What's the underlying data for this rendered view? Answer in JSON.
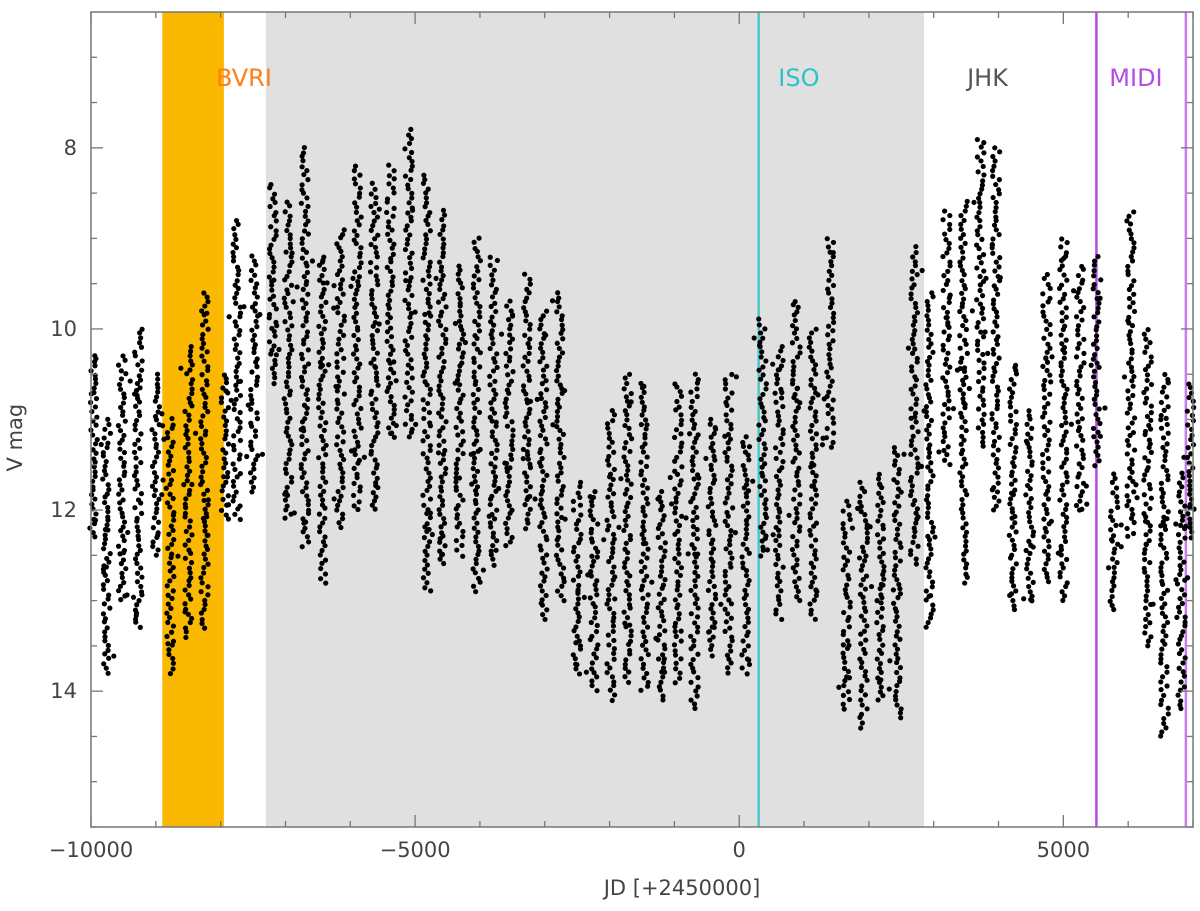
{
  "chart_data": {
    "type": "scatter",
    "title": "",
    "xlabel": "JD [+2450000]",
    "ylabel": "V mag",
    "xlim": [
      -10000,
      7000
    ],
    "ylim": [
      15.5,
      6.5
    ],
    "y_inverted": true,
    "grid": false,
    "x_ticks": [
      {
        "value": -10000,
        "label": "−10000"
      },
      {
        "value": -5000,
        "label": "−5000"
      },
      {
        "value": 0,
        "label": "0"
      },
      {
        "value": 5000,
        "label": "5000"
      }
    ],
    "y_ticks": [
      {
        "value": 8,
        "label": "8"
      },
      {
        "value": 10,
        "label": "10"
      },
      {
        "value": 12,
        "label": "12"
      },
      {
        "value": 14,
        "label": "14"
      }
    ],
    "bands": [
      {
        "name": "BVRI",
        "x0": -8900,
        "x1": -7950,
        "color": "#FBB800",
        "label_color": "#FF7F1A",
        "label_x": -7640
      },
      {
        "name": "",
        "x0": -7300,
        "x1": 2850,
        "color": "#E0E0E0",
        "label_color": "",
        "label_x": null
      },
      {
        "name": "ISO",
        "x0": 300,
        "x1": 300,
        "color": "#49C8CC",
        "label_color": "#2CC2C8",
        "label_x": 920
      },
      {
        "name": "JHK",
        "x0": null,
        "x1": null,
        "color": "",
        "label_color": "#555555",
        "label_x": 3830
      },
      {
        "name": "MIDI",
        "x0": 5510,
        "x1": 5510,
        "color": "#B44CE6",
        "label_color": "#B44CE6",
        "label_x": 6120
      },
      {
        "name": "",
        "x0": 6890,
        "x1": 6890,
        "color": "#C87CEC",
        "label_color": "",
        "label_x": null
      }
    ],
    "series": [
      {
        "color": "#000000",
        "clusters": [
          {
            "x": -9960,
            "y_top": 10.3,
            "y_bottom": 12.3
          },
          {
            "x": -9760,
            "y_top": 11.0,
            "y_bottom": 13.8
          },
          {
            "x": -9520,
            "y_top": 10.3,
            "y_bottom": 13.0
          },
          {
            "x": -9270,
            "y_top": 10.0,
            "y_bottom": 13.3
          },
          {
            "x": -9000,
            "y_top": 10.5,
            "y_bottom": 12.5
          },
          {
            "x": -8780,
            "y_top": 11.0,
            "y_bottom": 13.8
          },
          {
            "x": -8490,
            "y_top": 10.2,
            "y_bottom": 13.4
          },
          {
            "x": -8250,
            "y_top": 9.6,
            "y_bottom": 13.3
          },
          {
            "x": -7930,
            "y_top": 10.5,
            "y_bottom": 12.1
          },
          {
            "x": -7750,
            "y_top": 8.8,
            "y_bottom": 12.1
          },
          {
            "x": -7480,
            "y_top": 9.2,
            "y_bottom": 11.8
          },
          {
            "x": -7200,
            "y_top": 8.4,
            "y_bottom": 10.6
          },
          {
            "x": -6960,
            "y_top": 8.6,
            "y_bottom": 12.1
          },
          {
            "x": -6700,
            "y_top": 8.0,
            "y_bottom": 12.4
          },
          {
            "x": -6430,
            "y_top": 9.2,
            "y_bottom": 12.8
          },
          {
            "x": -6150,
            "y_top": 8.9,
            "y_bottom": 12.2
          },
          {
            "x": -5890,
            "y_top": 8.2,
            "y_bottom": 12.0
          },
          {
            "x": -5630,
            "y_top": 8.4,
            "y_bottom": 12.0
          },
          {
            "x": -5380,
            "y_top": 8.2,
            "y_bottom": 11.2
          },
          {
            "x": -5100,
            "y_top": 7.8,
            "y_bottom": 11.2
          },
          {
            "x": -4820,
            "y_top": 8.3,
            "y_bottom": 12.9
          },
          {
            "x": -4580,
            "y_top": 8.7,
            "y_bottom": 12.6
          },
          {
            "x": -4310,
            "y_top": 9.3,
            "y_bottom": 12.5
          },
          {
            "x": -4050,
            "y_top": 9.0,
            "y_bottom": 12.9
          },
          {
            "x": -3790,
            "y_top": 9.2,
            "y_bottom": 12.6
          },
          {
            "x": -3550,
            "y_top": 9.7,
            "y_bottom": 12.4
          },
          {
            "x": -3280,
            "y_top": 9.4,
            "y_bottom": 12.2
          },
          {
            "x": -3020,
            "y_top": 9.8,
            "y_bottom": 13.2
          },
          {
            "x": -2760,
            "y_top": 9.6,
            "y_bottom": 13.0
          },
          {
            "x": -2500,
            "y_top": 11.7,
            "y_bottom": 13.8
          },
          {
            "x": -2240,
            "y_top": 11.8,
            "y_bottom": 14.0
          },
          {
            "x": -1980,
            "y_top": 10.9,
            "y_bottom": 14.1
          },
          {
            "x": -1720,
            "y_top": 10.5,
            "y_bottom": 13.9
          },
          {
            "x": -1460,
            "y_top": 10.6,
            "y_bottom": 14.0
          },
          {
            "x": -1200,
            "y_top": 11.8,
            "y_bottom": 14.1
          },
          {
            "x": -940,
            "y_top": 10.6,
            "y_bottom": 13.9
          },
          {
            "x": -690,
            "y_top": 10.5,
            "y_bottom": 14.2
          },
          {
            "x": -420,
            "y_top": 11.0,
            "y_bottom": 13.6
          },
          {
            "x": -160,
            "y_top": 10.5,
            "y_bottom": 13.8
          },
          {
            "x": 100,
            "y_top": 11.2,
            "y_bottom": 13.8
          },
          {
            "x": 360,
            "y_top": 9.9,
            "y_bottom": 12.5
          },
          {
            "x": 620,
            "y_top": 10.2,
            "y_bottom": 13.2
          },
          {
            "x": 880,
            "y_top": 9.7,
            "y_bottom": 13.0
          },
          {
            "x": 1140,
            "y_top": 10.0,
            "y_bottom": 13.2
          },
          {
            "x": 1400,
            "y_top": 9.0,
            "y_bottom": 11.3
          },
          {
            "x": 1660,
            "y_top": 11.9,
            "y_bottom": 14.2
          },
          {
            "x": 1920,
            "y_top": 11.7,
            "y_bottom": 14.4
          },
          {
            "x": 2180,
            "y_top": 11.6,
            "y_bottom": 14.1
          },
          {
            "x": 2440,
            "y_top": 11.3,
            "y_bottom": 14.3
          },
          {
            "x": 2700,
            "y_top": 9.1,
            "y_bottom": 12.6
          },
          {
            "x": 2940,
            "y_top": 9.6,
            "y_bottom": 13.3
          },
          {
            "x": 3200,
            "y_top": 8.7,
            "y_bottom": 11.5
          },
          {
            "x": 3460,
            "y_top": 8.6,
            "y_bottom": 12.8
          },
          {
            "x": 3720,
            "y_top": 7.9,
            "y_bottom": 11.3
          },
          {
            "x": 3960,
            "y_top": 8.0,
            "y_bottom": 12.0
          },
          {
            "x": 4220,
            "y_top": 10.4,
            "y_bottom": 13.1
          },
          {
            "x": 4480,
            "y_top": 10.9,
            "y_bottom": 13.0
          },
          {
            "x": 4740,
            "y_top": 9.4,
            "y_bottom": 12.8
          },
          {
            "x": 5000,
            "y_top": 9.0,
            "y_bottom": 13.0
          },
          {
            "x": 5260,
            "y_top": 9.3,
            "y_bottom": 12.0
          },
          {
            "x": 5520,
            "y_top": 9.2,
            "y_bottom": 11.5
          },
          {
            "x": 5780,
            "y_top": 11.6,
            "y_bottom": 13.1
          },
          {
            "x": 6040,
            "y_top": 8.7,
            "y_bottom": 12.3
          },
          {
            "x": 6300,
            "y_top": 10.0,
            "y_bottom": 13.5
          },
          {
            "x": 6560,
            "y_top": 10.5,
            "y_bottom": 14.5
          },
          {
            "x": 6820,
            "y_top": 11.6,
            "y_bottom": 14.2
          },
          {
            "x": 6960,
            "y_top": 10.6,
            "y_bottom": 12.3
          }
        ]
      }
    ]
  }
}
